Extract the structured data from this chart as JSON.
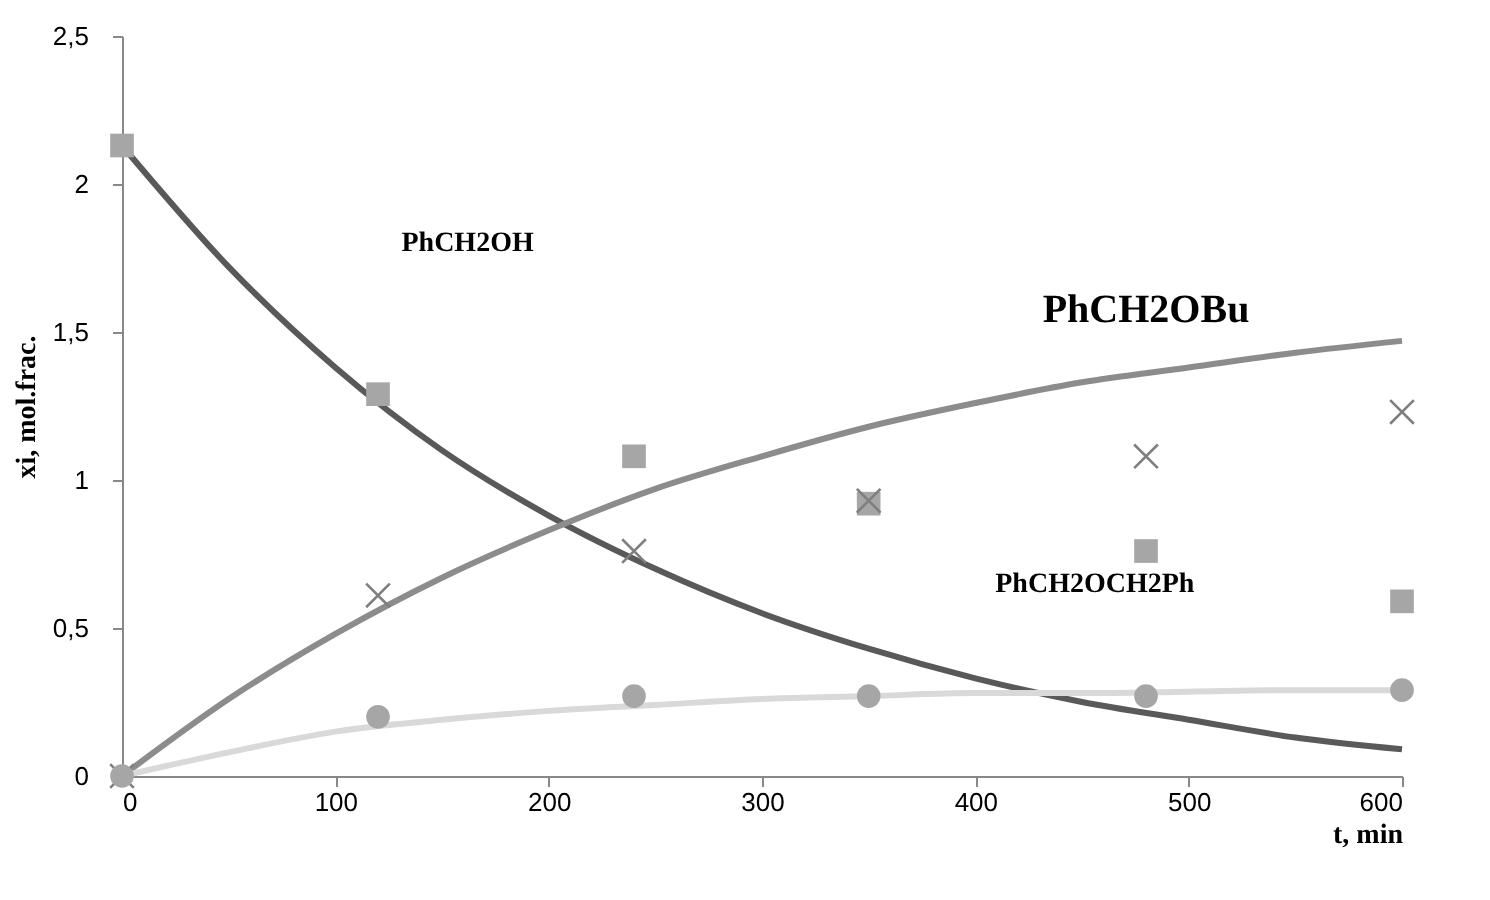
{
  "chart_data": {
    "type": "line",
    "xlabel": "t, min",
    "ylabel": "xi, mol.frac.",
    "xlim": [
      0,
      600
    ],
    "xticks": [
      0,
      100,
      200,
      300,
      400,
      500,
      600
    ],
    "ylim": [
      0,
      2.5
    ],
    "yticks": [
      0,
      {
        "value": 0.5,
        "label": "0,5"
      },
      1,
      {
        "value": 1.5,
        "label": "1,5"
      },
      2,
      {
        "value": 2.5,
        "label": "2,5"
      }
    ],
    "grid": false,
    "series": [
      {
        "color": "#595959",
        "x": [
          0,
          50,
          100,
          150,
          200,
          250,
          300,
          350,
          400,
          450,
          500,
          550,
          600
        ],
        "values": [
          2.13,
          1.72,
          1.38,
          1.1,
          0.88,
          0.7,
          0.55,
          0.43,
          0.33,
          0.25,
          0.19,
          0.13,
          0.09
        ]
      },
      {
        "color": "#8c8c8c",
        "x": [
          0,
          50,
          100,
          150,
          200,
          250,
          300,
          350,
          400,
          450,
          500,
          550,
          600
        ],
        "values": [
          0,
          0.26,
          0.48,
          0.67,
          0.83,
          0.97,
          1.08,
          1.18,
          1.26,
          1.33,
          1.38,
          1.43,
          1.47
        ]
      },
      {
        "color": "#d9d9d9",
        "x": [
          0,
          50,
          100,
          150,
          200,
          250,
          300,
          350,
          400,
          450,
          500,
          550,
          600
        ],
        "values": [
          0,
          0.08,
          0.15,
          0.19,
          0.22,
          0.24,
          0.26,
          0.27,
          0.28,
          0.28,
          0.285,
          0.29,
          0.29
        ]
      },
      {
        "type": "scatter",
        "marker": "square",
        "color": "#a6a6a6",
        "x": [
          0,
          120,
          240,
          350,
          480,
          600
        ],
        "values": [
          2.13,
          1.29,
          1.08,
          0.92,
          0.76,
          0.59
        ]
      },
      {
        "type": "scatter",
        "marker": "cross",
        "color": "#7f7f7f",
        "x": [
          0,
          120,
          240,
          350,
          480,
          600
        ],
        "values": [
          0,
          0.61,
          0.76,
          0.93,
          1.08,
          1.23
        ]
      },
      {
        "type": "scatter",
        "marker": "circle",
        "color": "#a6a6a6",
        "x": [
          0,
          120,
          240,
          350,
          480,
          600
        ],
        "values": [
          0,
          0.2,
          0.27,
          0.27,
          0.27,
          0.29
        ]
      }
    ],
    "annotations": [
      "PhCH2OH",
      "PhCH2OBu",
      "PhCH2OCH2Ph"
    ]
  }
}
